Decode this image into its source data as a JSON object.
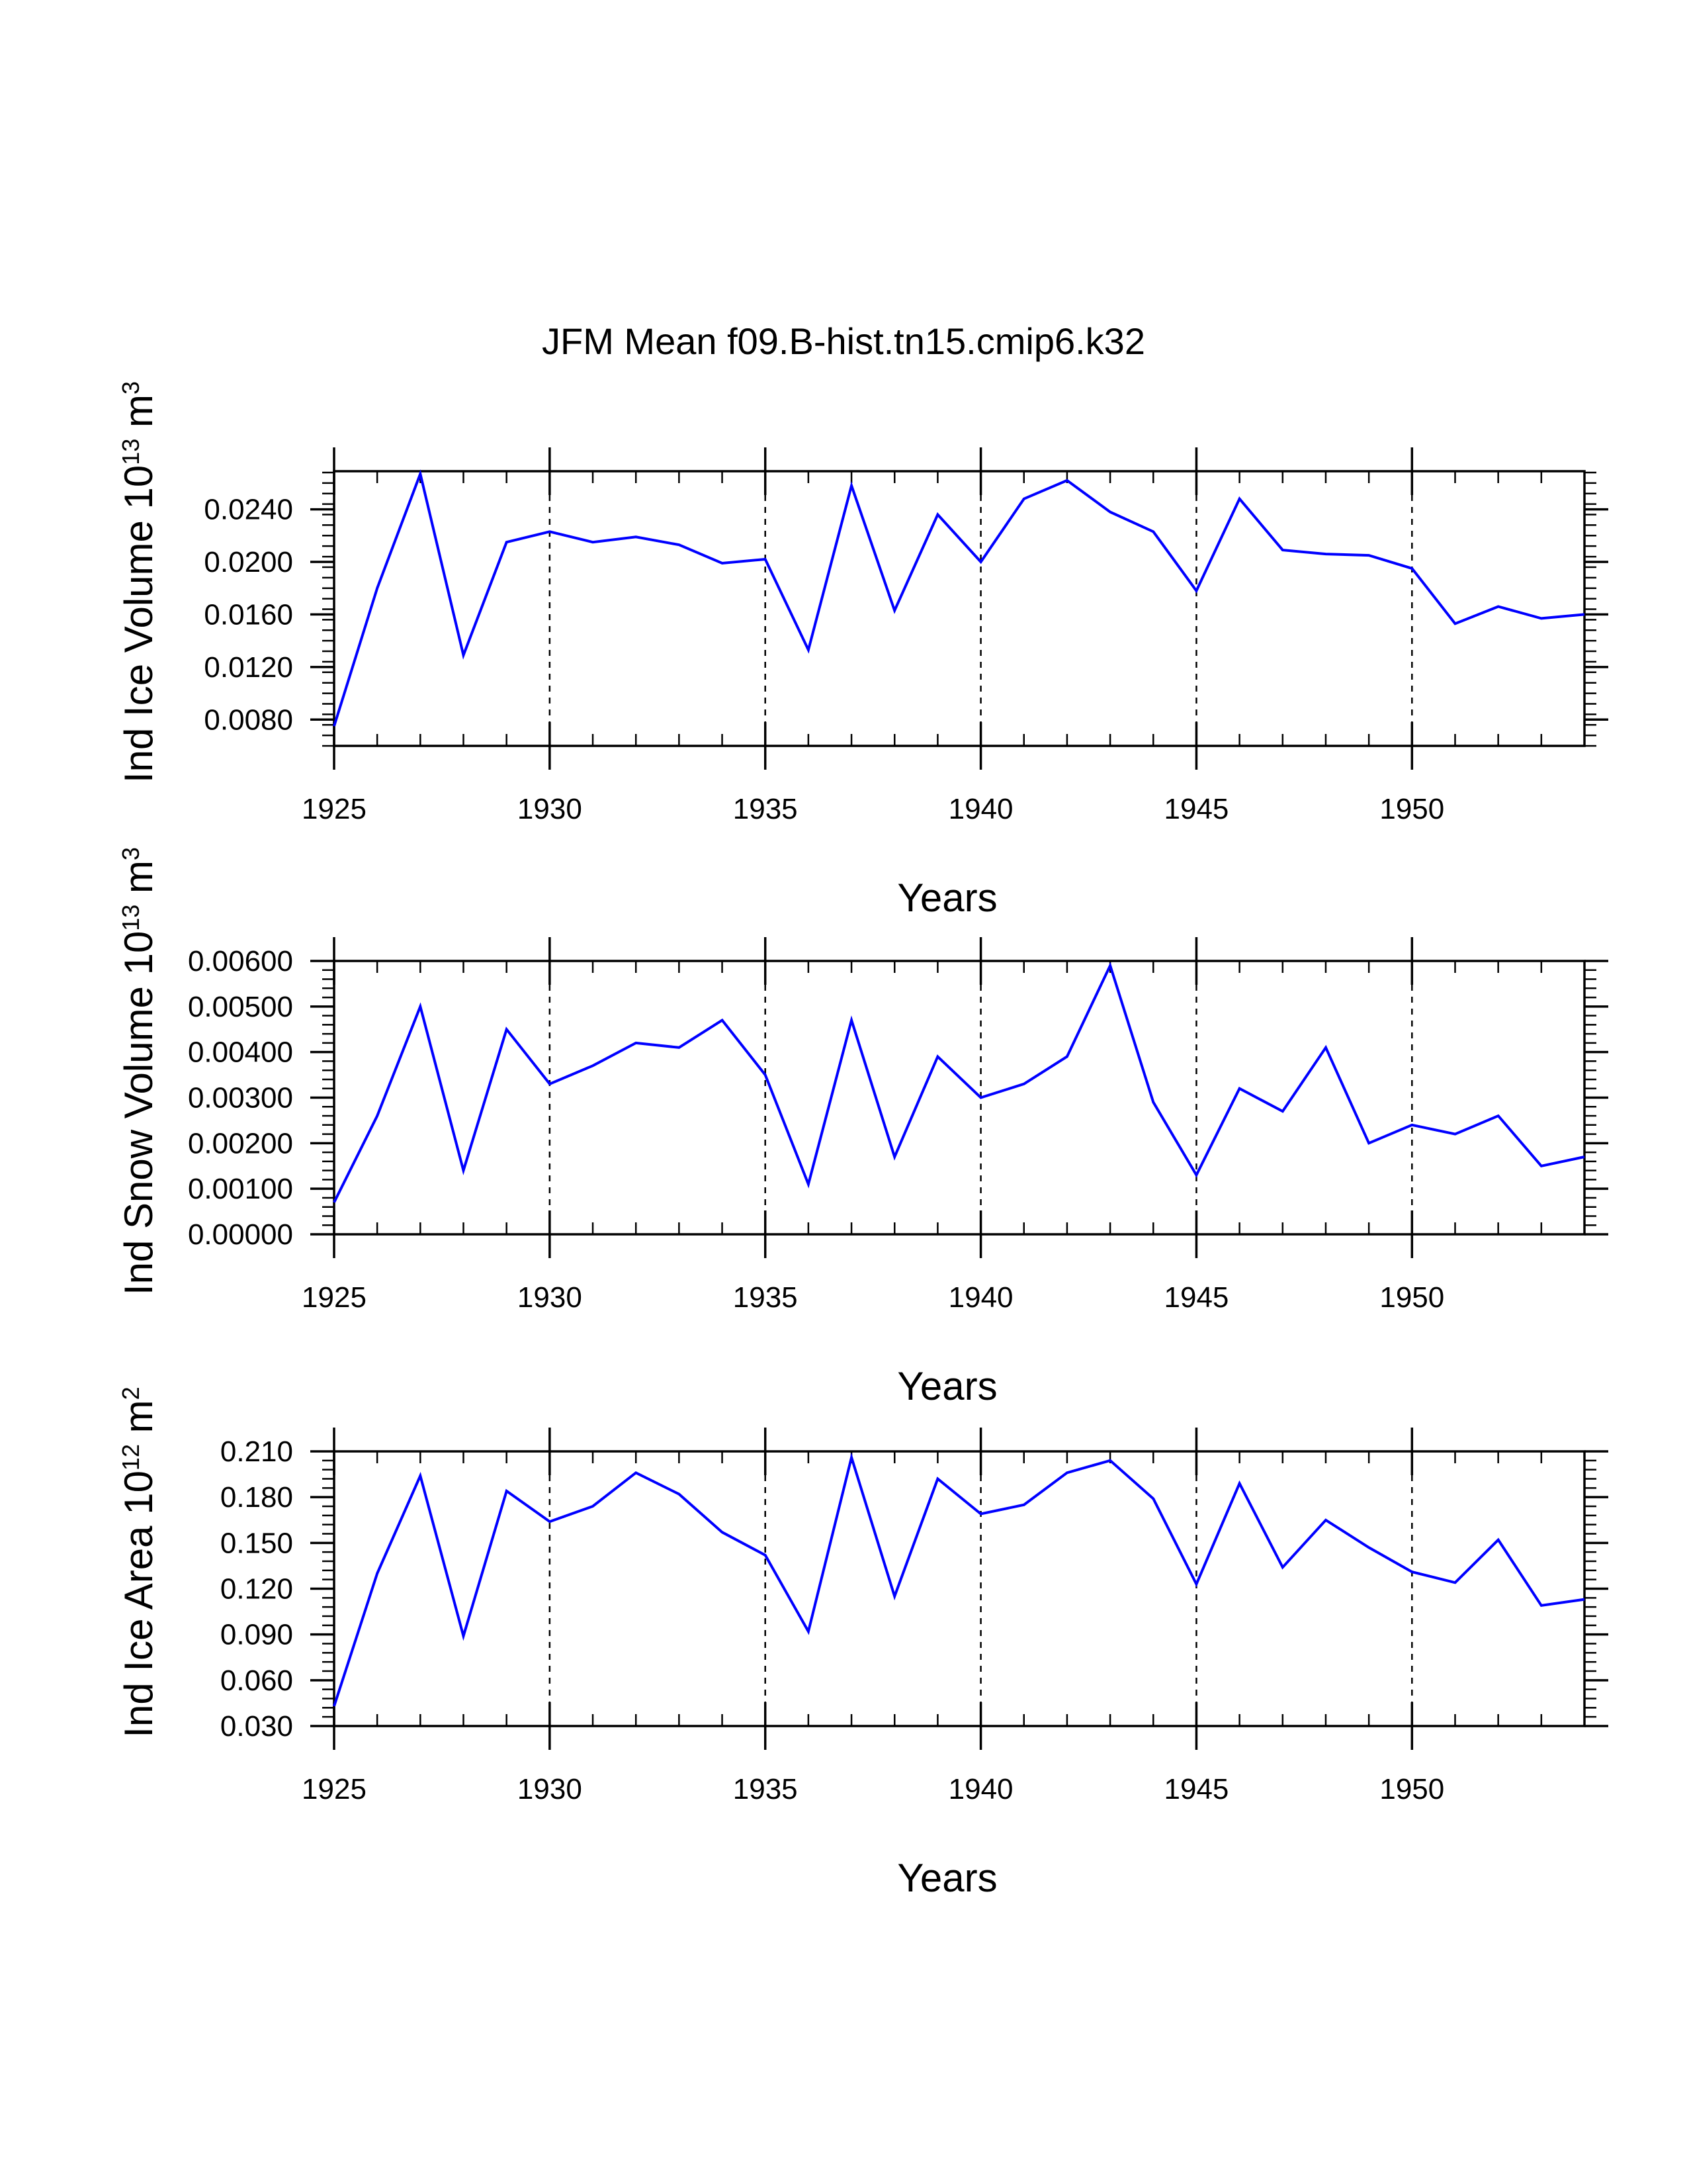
{
  "title": "JFM Mean f09.B-hist.tn15.cmip6.k32",
  "colors": {
    "line": "#0000ff",
    "axis": "#000000",
    "grid": "#000000",
    "background": "#ffffff"
  },
  "chart_data": [
    {
      "type": "line",
      "xlabel": "Years",
      "ylabel": {
        "text": "Ind Ice Volume 10",
        "exp": "13",
        "unit": " m",
        "unit_exp": "3"
      },
      "xlim": [
        1925,
        1954
      ],
      "ylim": [
        0.006,
        0.0269
      ],
      "grid_x": [
        1930,
        1935,
        1940,
        1945,
        1950
      ],
      "x_ticks": [
        "1925",
        "1930",
        "1935",
        "1940",
        "1945",
        "1950"
      ],
      "y_ticks": [
        {
          "value": 0.008,
          "label": "0.0080"
        },
        {
          "value": 0.012,
          "label": "0.0120"
        },
        {
          "value": 0.016,
          "label": "0.0160"
        },
        {
          "value": 0.02,
          "label": "0.0200"
        },
        {
          "value": 0.024,
          "label": "0.0240"
        }
      ],
      "x": [
        1925,
        1926,
        1927,
        1928,
        1929,
        1930,
        1931,
        1932,
        1933,
        1934,
        1935,
        1936,
        1937,
        1938,
        1939,
        1940,
        1941,
        1942,
        1943,
        1944,
        1945,
        1946,
        1947,
        1948,
        1949,
        1950,
        1951,
        1952,
        1953,
        1954
      ],
      "values": [
        0.0075,
        0.018,
        0.0267,
        0.0129,
        0.0215,
        0.0223,
        0.0215,
        0.0219,
        0.0213,
        0.0199,
        0.0202,
        0.0133,
        0.0258,
        0.0163,
        0.0236,
        0.02,
        0.0248,
        0.0262,
        0.0238,
        0.0223,
        0.0178,
        0.0248,
        0.0209,
        0.0206,
        0.0205,
        0.0195,
        0.0153,
        0.0166,
        0.0157,
        0.016
      ]
    },
    {
      "type": "line",
      "xlabel": "Years",
      "ylabel": {
        "text": "Ind Snow Volume 10",
        "exp": "13",
        "unit": " m",
        "unit_exp": "3"
      },
      "xlim": [
        1925,
        1954
      ],
      "ylim": [
        0.0,
        0.006
      ],
      "grid_x": [
        1930,
        1935,
        1940,
        1945,
        1950
      ],
      "x_ticks": [
        "1925",
        "1930",
        "1935",
        "1940",
        "1945",
        "1950"
      ],
      "y_ticks": [
        {
          "value": 0.0,
          "label": "0.00000"
        },
        {
          "value": 0.001,
          "label": "0.00100"
        },
        {
          "value": 0.002,
          "label": "0.00200"
        },
        {
          "value": 0.003,
          "label": "0.00300"
        },
        {
          "value": 0.004,
          "label": "0.00400"
        },
        {
          "value": 0.005,
          "label": "0.00500"
        },
        {
          "value": 0.006,
          "label": "0.00600"
        }
      ],
      "x": [
        1925,
        1926,
        1927,
        1928,
        1929,
        1930,
        1931,
        1932,
        1933,
        1934,
        1935,
        1936,
        1937,
        1938,
        1939,
        1940,
        1941,
        1942,
        1943,
        1944,
        1945,
        1946,
        1947,
        1948,
        1949,
        1950,
        1951,
        1952,
        1953,
        1954
      ],
      "values": [
        0.0007,
        0.0026,
        0.005,
        0.0014,
        0.0045,
        0.0033,
        0.0037,
        0.0042,
        0.0041,
        0.0047,
        0.0035,
        0.0011,
        0.0047,
        0.0017,
        0.0039,
        0.003,
        0.0033,
        0.0039,
        0.0059,
        0.0029,
        0.0013,
        0.0032,
        0.0027,
        0.0041,
        0.002,
        0.0024,
        0.0022,
        0.0026,
        0.0015,
        0.0017
      ]
    },
    {
      "type": "line",
      "xlabel": "Years",
      "ylabel": {
        "text": "Ind Ice Area 10",
        "exp": "12",
        "unit": " m",
        "unit_exp": "2"
      },
      "xlim": [
        1925,
        1954
      ],
      "ylim": [
        0.03,
        0.21
      ],
      "grid_x": [
        1930,
        1935,
        1940,
        1945,
        1950
      ],
      "x_ticks": [
        "1925",
        "1930",
        "1935",
        "1940",
        "1945",
        "1950"
      ],
      "y_ticks": [
        {
          "value": 0.03,
          "label": "0.030"
        },
        {
          "value": 0.06,
          "label": "0.060"
        },
        {
          "value": 0.09,
          "label": "0.090"
        },
        {
          "value": 0.12,
          "label": "0.120"
        },
        {
          "value": 0.15,
          "label": "0.150"
        },
        {
          "value": 0.18,
          "label": "0.180"
        },
        {
          "value": 0.21,
          "label": "0.210"
        }
      ],
      "x": [
        1925,
        1926,
        1927,
        1928,
        1929,
        1930,
        1931,
        1932,
        1933,
        1934,
        1935,
        1936,
        1937,
        1938,
        1939,
        1940,
        1941,
        1942,
        1943,
        1944,
        1945,
        1946,
        1947,
        1948,
        1949,
        1950,
        1951,
        1952,
        1953,
        1954
      ],
      "values": [
        0.043,
        0.13,
        0.194,
        0.089,
        0.184,
        0.164,
        0.174,
        0.196,
        0.182,
        0.157,
        0.142,
        0.092,
        0.206,
        0.115,
        0.192,
        0.169,
        0.175,
        0.196,
        0.204,
        0.179,
        0.123,
        0.189,
        0.134,
        0.165,
        0.147,
        0.131,
        0.124,
        0.152,
        0.109,
        0.113
      ]
    }
  ]
}
